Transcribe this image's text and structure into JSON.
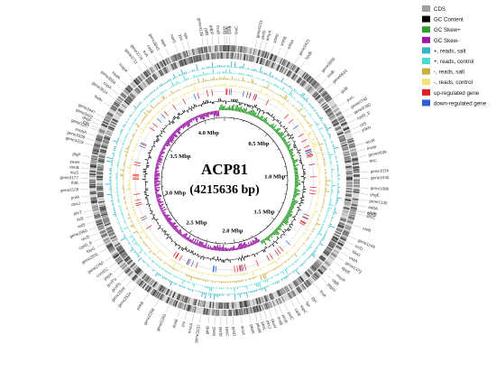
{
  "title": "ACP81",
  "subtitle": "(4215636 bp)",
  "genome_length": 4215636,
  "ticks": [
    "0.5 Mbp",
    "1.0 Mbp",
    "1.5 Mbp",
    "2.0 Mbp",
    "2.5 Mbp",
    "3.0 Mbp",
    "3.5 Mbp",
    "4.0 Mbp"
  ],
  "tick_values_mbp": [
    0.5,
    1.0,
    1.5,
    2.0,
    2.5,
    3.0,
    3.5,
    4.0
  ],
  "legend": [
    {
      "label": "CDS",
      "color": "#9e9e9e"
    },
    {
      "label": "GC Content",
      "color": "#000000"
    },
    {
      "label": "GC Skew+",
      "color": "#2e9d2e"
    },
    {
      "label": "GC Skew-",
      "color": "#9b1aa6"
    },
    {
      "label": "+, reads, salt",
      "color": "#35b7c7"
    },
    {
      "label": "+, reads, control",
      "color": "#47dccf"
    },
    {
      "label": "-, reads, salt",
      "color": "#c9b042"
    },
    {
      "label": "-, reads, control",
      "color": "#f2e27a"
    },
    {
      "label": "up-regulated gene",
      "color": "#e02020"
    },
    {
      "label": "down-regulated gene",
      "color": "#2d5fd6"
    }
  ],
  "genes": [
    {
      "name": "rpoB",
      "angle": 2
    },
    {
      "name": "rpoC",
      "angle": 4.5
    },
    {
      "name": "gene0231",
      "angle": 13
    },
    {
      "name": "srfAC",
      "angle": 20
    },
    {
      "name": "srfAB",
      "angle": 23
    },
    {
      "name": "srfAA",
      "angle": 26
    },
    {
      "name": "amyA",
      "angle": 17
    },
    {
      "name": "gerD",
      "angle": 15
    },
    {
      "name": "gene0421",
      "angle": 31
    },
    {
      "name": "hpdb",
      "angle": 34
    },
    {
      "name": "gene0558",
      "angle": 42
    },
    {
      "name": "sndb",
      "angle": 45
    },
    {
      "name": "gene0633",
      "angle": 48
    },
    {
      "name": "gsiB",
      "angle": 53
    },
    {
      "name": "purL",
      "angle": 57
    },
    {
      "name": "gene0748",
      "angle": 60
    },
    {
      "name": "gene0780",
      "angle": 62.5
    },
    {
      "name": "cypD_E",
      "angle": 65
    },
    {
      "name": "citS",
      "angle": 68
    },
    {
      "name": "ydkN",
      "angle": 70
    },
    {
      "name": "acuR",
      "angle": 75
    },
    {
      "name": "lmrM",
      "angle": 77.5
    },
    {
      "name": "gene0939",
      "angle": 80
    },
    {
      "name": "thiC",
      "angle": 82.5
    },
    {
      "name": "gene1016",
      "angle": 86.5
    },
    {
      "name": "gene1045",
      "angle": 89
    },
    {
      "name": "gene1086",
      "angle": 93
    },
    {
      "name": "yhgE",
      "angle": 95.5
    },
    {
      "name": "gene1130",
      "angle": 98
    },
    {
      "name": "addA",
      "angle": 100.5
    },
    {
      "name": "addB",
      "angle": 102.5
    },
    {
      "name": "sbcC",
      "angle": 104
    },
    {
      "name": "norG",
      "angle": 103
    },
    {
      "name": "carB",
      "angle": 109
    },
    {
      "name": "gene1246",
      "angle": 114
    },
    {
      "name": "srrD",
      "angle": 116.5
    },
    {
      "name": "fdoG",
      "angle": 119
    },
    {
      "name": "uxaA",
      "angle": 121.5
    },
    {
      "name": "gene1373",
      "angle": 124
    },
    {
      "name": "dppE",
      "angle": 126.5
    },
    {
      "name": "mscR",
      "angle": 130
    },
    {
      "name": "clpB",
      "angle": 132.5
    },
    {
      "name": "pbpH",
      "angle": 135
    },
    {
      "name": "fruA",
      "angle": 139
    },
    {
      "name": "pyc",
      "angle": 143
    },
    {
      "name": "hpr",
      "angle": 146
    },
    {
      "name": "sspC",
      "angle": 148.5
    },
    {
      "name": "carB",
      "angle": 151
    },
    {
      "name": "polC",
      "angle": 154
    },
    {
      "name": "proB",
      "angle": 156.5
    },
    {
      "name": "msiB",
      "angle": 158.5
    },
    {
      "name": "pksN",
      "angle": 161
    },
    {
      "name": "pksJ",
      "angle": 163
    },
    {
      "name": "pksL",
      "angle": 165
    },
    {
      "name": "pksM",
      "angle": 167
    },
    {
      "name": "pksR",
      "angle": 169.5
    },
    {
      "name": "acnA",
      "angle": 173
    },
    {
      "name": "ppsD",
      "angle": 176.5
    },
    {
      "name": "ppsC",
      "angle": 179
    },
    {
      "name": "ppsB",
      "angle": 181.5
    },
    {
      "name": "ppsE",
      "angle": 184
    },
    {
      "name": "glnB",
      "angle": 186.5
    },
    {
      "name": "gene2037",
      "angle": 190
    },
    {
      "name": "mscA",
      "angle": 193
    },
    {
      "name": "prs",
      "angle": 196
    },
    {
      "name": "dnaE",
      "angle": 199
    },
    {
      "name": "gene2283",
      "angle": 204
    },
    {
      "name": "gene2356",
      "angle": 209
    },
    {
      "name": "pnkB",
      "angle": 214
    },
    {
      "name": "gene2524",
      "angle": 220
    },
    {
      "name": "gene2566",
      "angle": 223
    },
    {
      "name": "gcvPb",
      "angle": 225.5
    },
    {
      "name": "gcvPa",
      "angle": 228
    },
    {
      "name": "pbpA",
      "angle": 230.5
    },
    {
      "name": "comEC",
      "angle": 233
    },
    {
      "name": "gene2765",
      "angle": 236
    },
    {
      "name": "gene2831",
      "angle": 240
    },
    {
      "name": "fdoG",
      "angle": 242.5
    },
    {
      "name": "cypD_E",
      "angle": 245
    },
    {
      "name": "recD",
      "angle": 247.5
    },
    {
      "name": "gene2950",
      "angle": 250
    },
    {
      "name": "valS",
      "angle": 252.5
    },
    {
      "name": "ilvB",
      "angle": 255
    },
    {
      "name": "pbrT",
      "angle": 257.5
    },
    {
      "name": "dnaJ",
      "angle": 261
    },
    {
      "name": "polA",
      "angle": 263.5
    },
    {
      "name": "gene3128",
      "angle": 266.5
    },
    {
      "name": "fhlK",
      "angle": 269
    },
    {
      "name": "gene3177",
      "angle": 271
    },
    {
      "name": "leuS",
      "angle": 273
    },
    {
      "name": "asnB",
      "angle": 275
    },
    {
      "name": "yaaH",
      "angle": 277
    },
    {
      "name": "glgP",
      "angle": 280
    },
    {
      "name": "gene3318",
      "angle": 285
    },
    {
      "name": "gene3338",
      "angle": 287
    },
    {
      "name": "mmbA",
      "angle": 289
    },
    {
      "name": "gene3387",
      "angle": 291.5
    },
    {
      "name": "fhlK",
      "angle": 292.5
    },
    {
      "name": "dhbF",
      "angle": 294
    },
    {
      "name": "gene3422",
      "angle": 295.5
    },
    {
      "name": "gene3447",
      "angle": 297.5
    },
    {
      "name": "fadN",
      "angle": 303
    },
    {
      "name": "gene3524",
      "angle": 306.5
    },
    {
      "name": "copA",
      "angle": 309
    },
    {
      "name": "gene3594",
      "angle": 311.5
    },
    {
      "name": "hsdR",
      "angle": 314
    },
    {
      "name": "mapA",
      "angle": 318
    },
    {
      "name": "gene3711",
      "angle": 323
    },
    {
      "name": "gene3776",
      "angle": 325.5
    },
    {
      "name": "trrA",
      "angle": 328
    },
    {
      "name": "capB",
      "angle": 330.5
    },
    {
      "name": "gene3840",
      "angle": 333
    },
    {
      "name": "atpA",
      "angle": 336
    },
    {
      "name": "narG",
      "angle": 340
    },
    {
      "name": "ypc",
      "angle": 343
    },
    {
      "name": "spe",
      "angle": 345
    },
    {
      "name": "gene4138",
      "angle": 351
    },
    {
      "name": "ptfB",
      "angle": 353
    },
    {
      "name": "gdpP",
      "angle": 355
    },
    {
      "name": "nsuB",
      "angle": 357.5
    },
    {
      "name": "gyrA",
      "angle": 0
    },
    {
      "name": "aslB",
      "angle": 1
    }
  ]
}
